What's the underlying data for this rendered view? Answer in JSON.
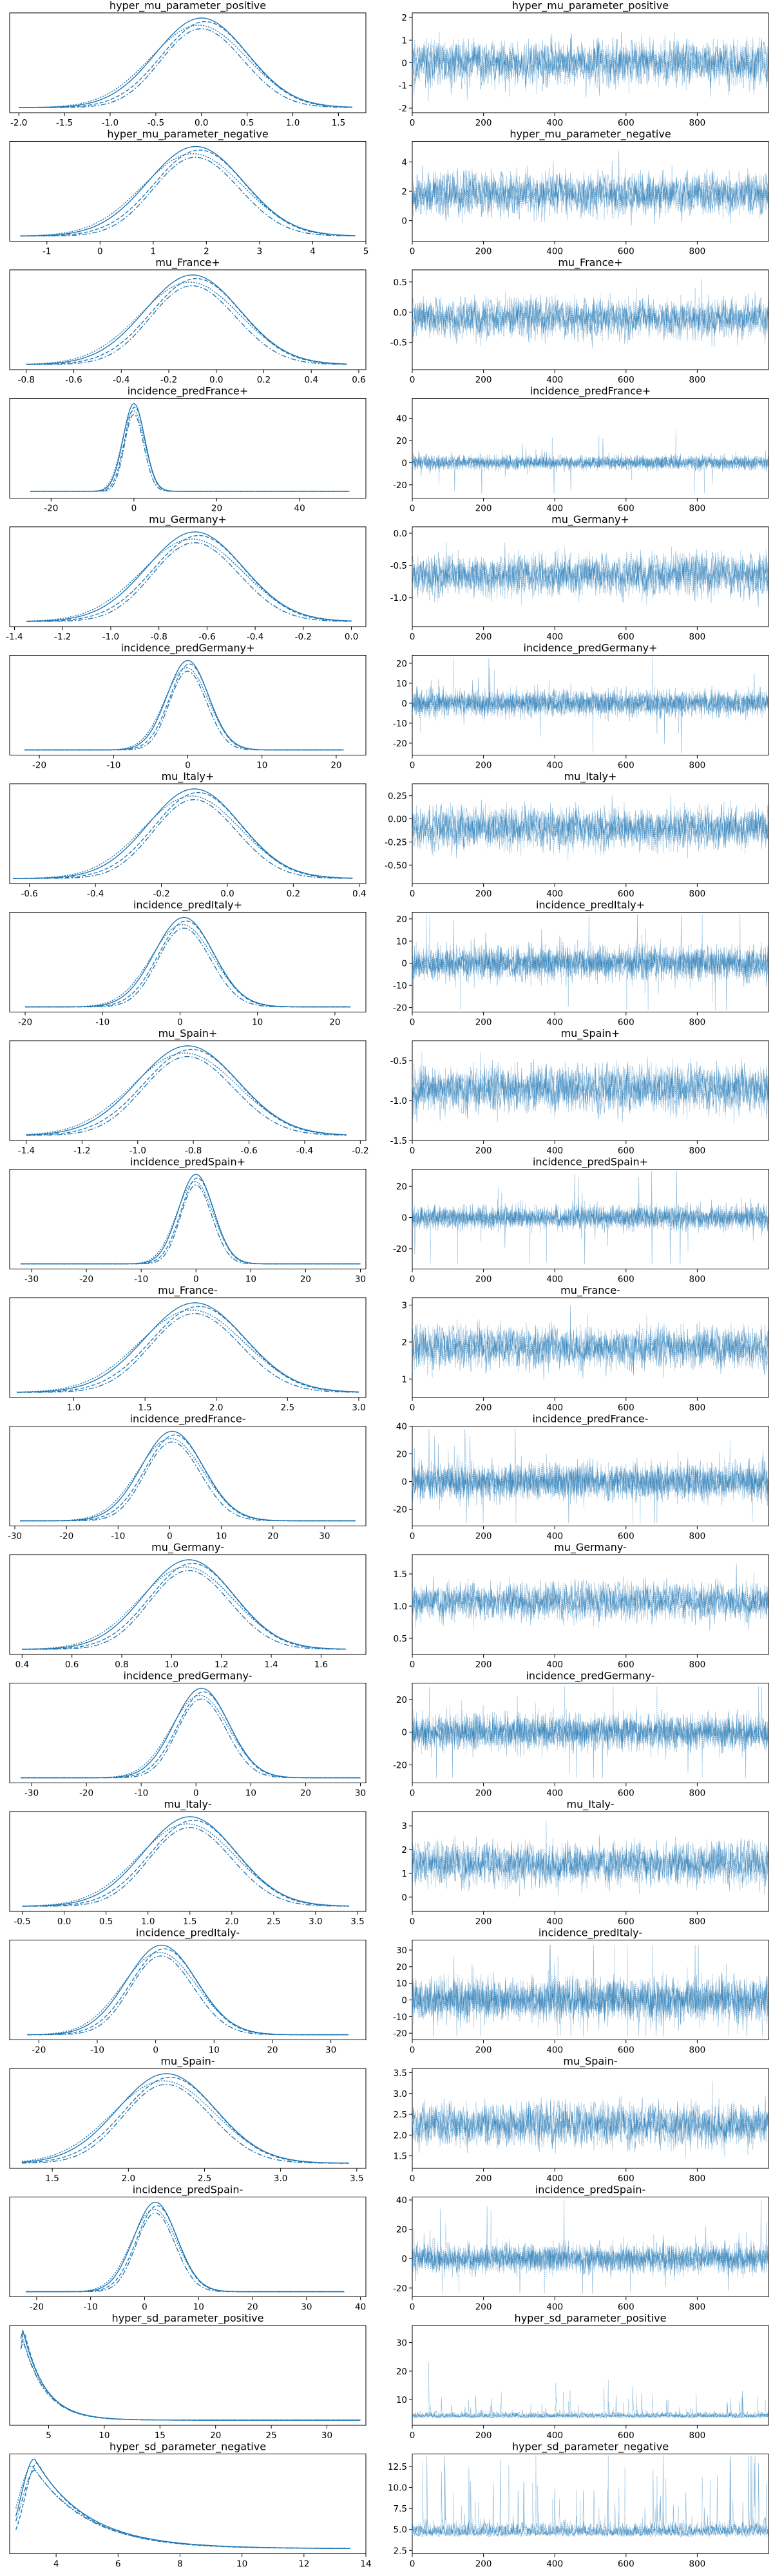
{
  "figure": {
    "type": "trace-plot",
    "rows": 20,
    "columns": [
      "posterior density",
      "trace"
    ]
  },
  "colors": {
    "series": "#1f77b4",
    "axes": "#000000",
    "background": "#ffffff"
  },
  "chart_data": [
    {
      "name": "hyper_mu_parameter_positive",
      "kde": {
        "xlim": [
          -2.1,
          1.8
        ],
        "xticks": [
          "-2.0",
          "-1.5",
          "-1.0",
          "-0.5",
          "0.0",
          "0.5",
          "1.0",
          "1.5"
        ],
        "tickvals": [
          -2,
          -1.5,
          -1,
          -0.5,
          0,
          0.5,
          1,
          1.5
        ],
        "mode": 0.0,
        "spread": 0.5,
        "range": [
          -2.0,
          1.65
        ],
        "tail": 0,
        "shape": "normal"
      },
      "trace": {
        "ylim": [
          -2.2,
          2.2
        ],
        "yticks": [
          "-2",
          "-1",
          "0",
          "1",
          "2"
        ],
        "tickvals": [
          -2,
          -1,
          0,
          1,
          2
        ],
        "center": 0.0,
        "spread": 0.6,
        "range": [
          -2.1,
          2.0
        ],
        "shape": "normal"
      }
    },
    {
      "name": "hyper_mu_parameter_negative",
      "kde": {
        "xlim": [
          -1.7,
          5.0
        ],
        "xticks": [
          "-1",
          "0",
          "1",
          "2",
          "3",
          "4",
          "5"
        ],
        "tickvals": [
          -1,
          0,
          1,
          2,
          3,
          4,
          5
        ],
        "mode": 1.8,
        "spread": 0.9,
        "range": [
          -1.5,
          4.8
        ],
        "tail": 0,
        "shape": "normal"
      },
      "trace": {
        "ylim": [
          -1.4,
          5.4
        ],
        "yticks": [
          "0",
          "2",
          "4"
        ],
        "tickvals": [
          0,
          2,
          4
        ],
        "center": 1.8,
        "spread": 0.9,
        "range": [
          -1.3,
          5.0
        ],
        "shape": "normal"
      }
    },
    {
      "name": "mu_France+",
      "kde": {
        "xlim": [
          -0.87,
          0.63
        ],
        "xticks": [
          "-0.8",
          "-0.6",
          "-0.4",
          "-0.2",
          "0.0",
          "0.2",
          "0.4",
          "0.6"
        ],
        "tickvals": [
          -0.8,
          -0.6,
          -0.4,
          -0.2,
          0,
          0.2,
          0.4,
          0.6
        ],
        "mode": -0.1,
        "spread": 0.2,
        "range": [
          -0.8,
          0.55
        ],
        "tail": 0,
        "shape": "normal"
      },
      "trace": {
        "ylim": [
          -0.95,
          0.7
        ],
        "yticks": [
          "-0.5",
          "0.0",
          "0.5"
        ],
        "tickvals": [
          -0.5,
          0,
          0.5
        ],
        "center": -0.1,
        "spread": 0.2,
        "range": [
          -0.9,
          0.65
        ],
        "shape": "normal"
      }
    },
    {
      "name": "incidence_predFrance+",
      "kde": {
        "xlim": [
          -30,
          56
        ],
        "xticks": [
          "-20",
          "0",
          "20",
          "40"
        ],
        "tickvals": [
          -20,
          0,
          20,
          40
        ],
        "mode": 0.0,
        "spread": 2.6,
        "range": [
          -25,
          52
        ],
        "tail": 0.02,
        "shape": "normal"
      },
      "trace": {
        "ylim": [
          -32,
          58
        ],
        "yticks": [
          "-20",
          "0",
          "20",
          "40"
        ],
        "tickvals": [
          -20,
          0,
          20,
          40
        ],
        "center": 0.0,
        "spread": 3.0,
        "range": [
          -28,
          55
        ],
        "shape": "heavy"
      }
    },
    {
      "name": "mu_Germany+",
      "kde": {
        "xlim": [
          -1.42,
          0.06
        ],
        "xticks": [
          "-1.4",
          "-1.2",
          "-1.0",
          "-0.8",
          "-0.6",
          "-0.4",
          "-0.2",
          "0.0"
        ],
        "tickvals": [
          -1.4,
          -1.2,
          -1,
          -0.8,
          -0.6,
          -0.4,
          -0.2,
          0
        ],
        "mode": -0.65,
        "spread": 0.2,
        "range": [
          -1.35,
          0.0
        ],
        "tail": 0,
        "shape": "normal"
      },
      "trace": {
        "ylim": [
          -1.45,
          0.1
        ],
        "yticks": [
          "-1.0",
          "-0.5",
          "0.0"
        ],
        "tickvals": [
          -1,
          -0.5,
          0
        ],
        "center": -0.65,
        "spread": 0.2,
        "range": [
          -1.4,
          0.05
        ],
        "shape": "normal"
      }
    },
    {
      "name": "incidence_predGermany+",
      "kde": {
        "xlim": [
          -24,
          24
        ],
        "xticks": [
          "-20",
          "-10",
          "0",
          "10",
          "20"
        ],
        "tickvals": [
          -20,
          -10,
          0,
          10,
          20
        ],
        "mode": 0.0,
        "spread": 2.8,
        "range": [
          -22,
          21
        ],
        "tail": 0,
        "shape": "normal"
      },
      "trace": {
        "ylim": [
          -26,
          24
        ],
        "yticks": [
          "-20",
          "-10",
          "0",
          "10",
          "20"
        ],
        "tickvals": [
          -20,
          -10,
          0,
          10,
          20
        ],
        "center": 0.0,
        "spread": 3.0,
        "range": [
          -25,
          23
        ],
        "shape": "heavy"
      }
    },
    {
      "name": "mu_Italy+",
      "kde": {
        "xlim": [
          -0.66,
          0.42
        ],
        "xticks": [
          "-0.6",
          "-0.4",
          "-0.2",
          "0.0",
          "0.2",
          "0.4"
        ],
        "tickvals": [
          -0.6,
          -0.4,
          -0.2,
          0,
          0.2,
          0.4
        ],
        "mode": -0.1,
        "spread": 0.14,
        "range": [
          -0.65,
          0.38
        ],
        "tail": 0,
        "shape": "normal"
      },
      "trace": {
        "ylim": [
          -0.7,
          0.38
        ],
        "yticks": [
          "-0.50",
          "-0.25",
          "0.00",
          "0.25"
        ],
        "tickvals": [
          -0.5,
          -0.25,
          0,
          0.25
        ],
        "center": -0.1,
        "spread": 0.14,
        "range": [
          -0.68,
          0.36
        ],
        "shape": "normal"
      }
    },
    {
      "name": "incidence_predItaly+",
      "kde": {
        "xlim": [
          -22,
          24
        ],
        "xticks": [
          "-20",
          "-10",
          "0",
          "10",
          "20"
        ],
        "tickvals": [
          -20,
          -10,
          0,
          10,
          20
        ],
        "mode": 0.5,
        "spread": 3.8,
        "range": [
          -20,
          22
        ],
        "tail": 0,
        "shape": "normal"
      },
      "trace": {
        "ylim": [
          -22,
          23
        ],
        "yticks": [
          "-20",
          "-10",
          "0",
          "10",
          "20"
        ],
        "tickvals": [
          -20,
          -10,
          0,
          10,
          20
        ],
        "center": 0.0,
        "spread": 3.5,
        "range": [
          -21,
          22
        ],
        "shape": "heavy"
      }
    },
    {
      "name": "mu_Spain+",
      "kde": {
        "xlim": [
          -1.46,
          -0.18
        ],
        "xticks": [
          "-1.4",
          "-1.2",
          "-1.0",
          "-0.8",
          "-0.6",
          "-0.4",
          "-0.2"
        ],
        "tickvals": [
          -1.4,
          -1.2,
          -1,
          -0.8,
          -0.6,
          -0.4,
          -0.2
        ],
        "mode": -0.82,
        "spread": 0.18,
        "range": [
          -1.4,
          -0.25
        ],
        "tail": 0,
        "shape": "normal"
      },
      "trace": {
        "ylim": [
          -1.5,
          -0.25
        ],
        "yticks": [
          "-1.5",
          "-1.0",
          "-0.5"
        ],
        "tickvals": [
          -1.5,
          -1,
          -0.5
        ],
        "center": -0.85,
        "spread": 0.18,
        "range": [
          -1.45,
          -0.3
        ],
        "shape": "normal"
      }
    },
    {
      "name": "incidence_predSpain+",
      "kde": {
        "xlim": [
          -34,
          31
        ],
        "xticks": [
          "-30",
          "-20",
          "-10",
          "0",
          "10",
          "20",
          "30"
        ],
        "tickvals": [
          -30,
          -20,
          -10,
          0,
          10,
          20,
          30
        ],
        "mode": 0.0,
        "spread": 3.2,
        "range": [
          -32,
          30
        ],
        "tail": 0,
        "shape": "normal"
      },
      "trace": {
        "ylim": [
          -33,
          31
        ],
        "yticks": [
          "-20",
          "0",
          "20"
        ],
        "tickvals": [
          -20,
          0,
          20
        ],
        "center": 0.0,
        "spread": 3.5,
        "range": [
          -30,
          30
        ],
        "shape": "heavy"
      }
    },
    {
      "name": "mu_France-",
      "kde": {
        "xlim": [
          0.55,
          3.05
        ],
        "xticks": [
          "1.0",
          "1.5",
          "2.0",
          "2.5",
          "3.0"
        ],
        "tickvals": [
          1,
          1.5,
          2,
          2.5,
          3
        ],
        "mode": 1.85,
        "spread": 0.35,
        "range": [
          0.6,
          3.0
        ],
        "tail": 0,
        "shape": "normal"
      },
      "trace": {
        "ylim": [
          0.5,
          3.2
        ],
        "yticks": [
          "1",
          "2",
          "3"
        ],
        "tickvals": [
          1,
          2,
          3
        ],
        "center": 1.85,
        "spread": 0.35,
        "range": [
          0.6,
          3.1
        ],
        "shape": "normal"
      }
    },
    {
      "name": "incidence_predFrance-",
      "kde": {
        "xlim": [
          -31,
          38
        ],
        "xticks": [
          "-30",
          "-20",
          "-10",
          "0",
          "10",
          "20",
          "30"
        ],
        "tickvals": [
          -30,
          -20,
          -10,
          0,
          10,
          20,
          30
        ],
        "mode": 0.5,
        "spread": 6.0,
        "range": [
          -29,
          36
        ],
        "tail": 0,
        "shape": "normal"
      },
      "trace": {
        "ylim": [
          -32,
          40
        ],
        "yticks": [
          "-20",
          "0",
          "20",
          "40"
        ],
        "tickvals": [
          -20,
          0,
          20,
          40
        ],
        "center": 0.0,
        "spread": 6.0,
        "range": [
          -30,
          38
        ],
        "shape": "heavy"
      }
    },
    {
      "name": "mu_Germany-",
      "kde": {
        "xlim": [
          0.35,
          1.78
        ],
        "xticks": [
          "0.4",
          "0.6",
          "0.8",
          "1.0",
          "1.2",
          "1.4",
          "1.6"
        ],
        "tickvals": [
          0.4,
          0.6,
          0.8,
          1,
          1.2,
          1.4,
          1.6
        ],
        "mode": 1.07,
        "spread": 0.18,
        "range": [
          0.4,
          1.7
        ],
        "tail": 0,
        "shape": "normal"
      },
      "trace": {
        "ylim": [
          0.25,
          1.8
        ],
        "yticks": [
          "0.5",
          "1.0",
          "1.5"
        ],
        "tickvals": [
          0.5,
          1,
          1.5
        ],
        "center": 1.07,
        "spread": 0.18,
        "range": [
          0.3,
          1.75
        ],
        "shape": "normal"
      }
    },
    {
      "name": "incidence_predGermany-",
      "kde": {
        "xlim": [
          -34,
          31
        ],
        "xticks": [
          "-30",
          "-20",
          "-10",
          "0",
          "10",
          "20",
          "30"
        ],
        "tickvals": [
          -30,
          -20,
          -10,
          0,
          10,
          20,
          30
        ],
        "mode": 1.0,
        "spread": 5.0,
        "range": [
          -32,
          30
        ],
        "tail": 0,
        "shape": "normal"
      },
      "trace": {
        "ylim": [
          -31,
          30
        ],
        "yticks": [
          "-20",
          "0",
          "20"
        ],
        "tickvals": [
          -20,
          0,
          20
        ],
        "center": 0.0,
        "spread": 5.0,
        "range": [
          -28,
          28
        ],
        "shape": "heavy"
      }
    },
    {
      "name": "mu_Italy-",
      "kde": {
        "xlim": [
          -0.65,
          3.6
        ],
        "xticks": [
          "-0.5",
          "0.0",
          "0.5",
          "1.0",
          "1.5",
          "2.0",
          "2.5",
          "3.0",
          "3.5"
        ],
        "tickvals": [
          -0.5,
          0,
          0.5,
          1,
          1.5,
          2,
          2.5,
          3,
          3.5
        ],
        "mode": 1.5,
        "spread": 0.55,
        "range": [
          -0.5,
          3.4
        ],
        "tail": 0,
        "shape": "normal"
      },
      "trace": {
        "ylim": [
          -0.6,
          3.6
        ],
        "yticks": [
          "0",
          "1",
          "2",
          "3"
        ],
        "tickvals": [
          0,
          1,
          2,
          3
        ],
        "center": 1.4,
        "spread": 0.55,
        "range": [
          -0.5,
          3.4
        ],
        "shape": "normal"
      }
    },
    {
      "name": "incidence_predItaly-",
      "kde": {
        "xlim": [
          -25,
          36
        ],
        "xticks": [
          "-20",
          "-10",
          "0",
          "10",
          "20",
          "30"
        ],
        "tickvals": [
          -20,
          -10,
          0,
          10,
          20,
          30
        ],
        "mode": 1.0,
        "spread": 6.0,
        "range": [
          -22,
          33
        ],
        "tail": 0,
        "shape": "normal"
      },
      "trace": {
        "ylim": [
          -24,
          36
        ],
        "yticks": [
          "-20",
          "-10",
          "0",
          "10",
          "20",
          "30"
        ],
        "tickvals": [
          -20,
          -10,
          0,
          10,
          20,
          30
        ],
        "center": 0.0,
        "spread": 6.0,
        "range": [
          -22,
          33
        ],
        "shape": "heavy"
      }
    },
    {
      "name": "mu_Spain-",
      "kde": {
        "xlim": [
          1.22,
          3.56
        ],
        "xticks": [
          "1.5",
          "2.0",
          "2.5",
          "3.0",
          "3.5"
        ],
        "tickvals": [
          1.5,
          2,
          2.5,
          3,
          3.5
        ],
        "mode": 2.25,
        "spread": 0.32,
        "range": [
          1.3,
          3.45
        ],
        "tail": 0,
        "shape": "normal"
      },
      "trace": {
        "ylim": [
          1.2,
          3.6
        ],
        "yticks": [
          "1.5",
          "2.0",
          "2.5",
          "3.0",
          "3.5"
        ],
        "tickvals": [
          1.5,
          2,
          2.5,
          3,
          3.5
        ],
        "center": 2.25,
        "spread": 0.32,
        "range": [
          1.3,
          3.5
        ],
        "shape": "normal"
      }
    },
    {
      "name": "incidence_predSpain-",
      "kde": {
        "xlim": [
          -25,
          41
        ],
        "xticks": [
          "-20",
          "-10",
          "0",
          "10",
          "20",
          "30",
          "40"
        ],
        "tickvals": [
          -20,
          -10,
          0,
          10,
          20,
          30,
          40
        ],
        "mode": 2.0,
        "spread": 4.0,
        "range": [
          -22,
          37
        ],
        "tail": 0,
        "shape": "normal"
      },
      "trace": {
        "ylim": [
          -26,
          42
        ],
        "yticks": [
          "-20",
          "0",
          "20",
          "40"
        ],
        "tickvals": [
          -20,
          0,
          20,
          40
        ],
        "center": 0.0,
        "spread": 4.5,
        "range": [
          -24,
          40
        ],
        "shape": "heavy"
      }
    },
    {
      "name": "hyper_sd_parameter_positive",
      "kde": {
        "xlim": [
          1.5,
          33.5
        ],
        "xticks": [
          "5",
          "10",
          "15",
          "20",
          "25",
          "30"
        ],
        "tickvals": [
          5,
          10,
          15,
          20,
          25,
          30
        ],
        "mode": 2.7,
        "spread": 1.4,
        "range": [
          2.5,
          33
        ],
        "tail": 0,
        "shape": "decay"
      },
      "trace": {
        "ylim": [
          1.0,
          36.0
        ],
        "yticks": [
          "10",
          "20",
          "30"
        ],
        "tickvals": [
          10,
          20,
          30
        ],
        "center": 3.4,
        "spread": 1.2,
        "range": [
          2.5,
          34
        ],
        "shape": "skewed"
      }
    },
    {
      "name": "hyper_sd_parameter_negative",
      "kde": {
        "xlim": [
          2.5,
          14.0
        ],
        "xticks": [
          "4",
          "6",
          "8",
          "10",
          "12",
          "14"
        ],
        "tickvals": [
          4,
          6,
          8,
          10,
          12,
          14
        ],
        "mode": 3.3,
        "spread": 1.2,
        "range": [
          2.7,
          13.5
        ],
        "tail": 0,
        "shape": "decay"
      },
      "trace": {
        "ylim": [
          2.1,
          14.0
        ],
        "yticks": [
          "2.5",
          "5.0",
          "7.5",
          "10.0",
          "12.5"
        ],
        "tickvals": [
          2.5,
          5,
          7.5,
          10,
          12.5
        ],
        "center": 4.0,
        "spread": 1.0,
        "range": [
          2.6,
          13.8
        ],
        "shape": "skewed"
      }
    }
  ],
  "trace_xaxis": {
    "xlim": [
      0,
      1000
    ],
    "xticks": [
      "0",
      "200",
      "400",
      "600",
      "800"
    ],
    "tickvals": [
      0,
      200,
      400,
      600,
      800
    ]
  }
}
